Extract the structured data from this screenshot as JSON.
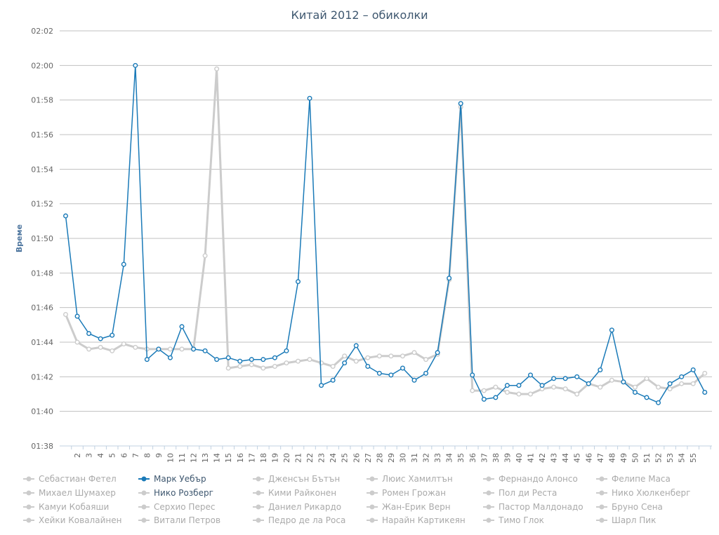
{
  "chart_data": {
    "type": "line",
    "title": "Китай 2012 – обиколки",
    "xlabel": "",
    "ylabel": "Време",
    "ylim": [
      "01:38",
      "02:02"
    ],
    "y_ticks": [
      "01:38",
      "01:40",
      "01:42",
      "01:44",
      "01:46",
      "01:48",
      "01:50",
      "01:52",
      "01:54",
      "01:56",
      "01:58",
      "02:00",
      "02:02"
    ],
    "x_ticks": [
      "2",
      "3",
      "4",
      "5",
      "6",
      "7",
      "8",
      "9",
      "10",
      "11",
      "12",
      "13",
      "14",
      "15",
      "16",
      "17",
      "18",
      "19",
      "20",
      "21",
      "22",
      "23",
      "24",
      "25",
      "26",
      "27",
      "28",
      "29",
      "30",
      "31",
      "32",
      "33",
      "34",
      "35",
      "36",
      "37",
      "38",
      "39",
      "40",
      "41",
      "42",
      "43",
      "44",
      "45",
      "46",
      "47",
      "48",
      "49",
      "50",
      "51",
      "52",
      "53",
      "54",
      "55"
    ],
    "grid": true,
    "legend_position": "bottom",
    "series": [
      {
        "name": "Марк Уебър",
        "color": "#1a7ab8",
        "highlight": true,
        "x": [
          1,
          2,
          3,
          4,
          5,
          6,
          7,
          8,
          9,
          10,
          11,
          12,
          13,
          14,
          15,
          16,
          17,
          18,
          19,
          20,
          21,
          22,
          23,
          24,
          25,
          26,
          27,
          28,
          29,
          30,
          31,
          32,
          33,
          34,
          35,
          36,
          37,
          38,
          39,
          40,
          41,
          42,
          43,
          44,
          45,
          46,
          47,
          48,
          49,
          50,
          51,
          52,
          53,
          54,
          55,
          56
        ],
        "values": [
          "01:51.3",
          "01:45.5",
          "01:44.5",
          "01:44.2",
          "01:44.4",
          "01:48.5",
          "02:00.0",
          "01:43.0",
          "01:43.6",
          "01:43.1",
          "01:44.9",
          "01:43.6",
          "01:43.5",
          "01:43.0",
          "01:43.1",
          "01:42.9",
          "01:43.0",
          "01:43.0",
          "01:43.1",
          "01:43.5",
          "01:47.5",
          "01:58.1",
          "01:41.5",
          "01:41.8",
          "01:42.8",
          "01:43.8",
          "01:42.6",
          "01:42.2",
          "01:42.1",
          "01:42.5",
          "01:41.8",
          "01:42.2",
          "01:43.4",
          "01:47.7",
          "01:57.8",
          "01:42.1",
          "01:40.7",
          "01:40.8",
          "01:41.5",
          "01:41.5",
          "01:42.1",
          "01:41.5",
          "01:41.9",
          "01:41.9",
          "01:42.0",
          "01:41.6",
          "01:42.4",
          "01:44.7",
          "01:41.7",
          "01:41.1",
          "01:40.8",
          "01:40.5",
          "01:41.6",
          "01:42.0",
          "01:42.4",
          "01:41.1"
        ]
      },
      {
        "name": "Нико Розберг",
        "color": "#cccccc",
        "highlight": true,
        "x": [
          1,
          2,
          3,
          4,
          5,
          6,
          7,
          8,
          9,
          10,
          11,
          12,
          13,
          14,
          15,
          16,
          17,
          18,
          19,
          20,
          21,
          22,
          23,
          24,
          25,
          26,
          27,
          28,
          29,
          30,
          31,
          32,
          33,
          34,
          35,
          36,
          37,
          38,
          39,
          40,
          41,
          42,
          43,
          44,
          45,
          46,
          47,
          48,
          49,
          50,
          51,
          52,
          53,
          54,
          55,
          56
        ],
        "values": [
          "01:45.6",
          "01:44.0",
          "01:43.6",
          "01:43.7",
          "01:43.5",
          "01:43.9",
          "01:43.7",
          "01:43.6",
          "01:43.6",
          "01:43.6",
          "01:43.6",
          "01:43.6",
          "01:49.0",
          "01:59.8",
          "01:42.5",
          "01:42.6",
          "01:42.7",
          "01:42.5",
          "01:42.6",
          "01:42.8",
          "01:42.9",
          "01:43.0",
          "01:42.8",
          "01:42.6",
          "01:43.2",
          "01:42.9",
          "01:43.1",
          "01:43.2",
          "01:43.2",
          "01:43.2",
          "01:43.4",
          "01:43.0",
          "01:43.3",
          "01:47.6",
          "01:57.6",
          "01:41.2",
          "01:41.2",
          "01:41.4",
          "01:41.1",
          "01:41.0",
          "01:41.0",
          "01:41.3",
          "01:41.4",
          "01:41.3",
          "01:41.0",
          "01:41.6",
          "01:41.4",
          "01:41.8",
          "01:41.7",
          "01:41.4",
          "01:41.9",
          "01:41.4",
          "01:41.3",
          "01:41.6",
          "01:41.6",
          "01:42.2"
        ]
      }
    ]
  },
  "legend": {
    "items": [
      {
        "name": "Себастиан Фетел",
        "active": false
      },
      {
        "name": "Марк Уебър",
        "active": true,
        "color": "#1a7ab8"
      },
      {
        "name": "Дженсън Бътън",
        "active": false
      },
      {
        "name": "Люис Хамилтън",
        "active": false
      },
      {
        "name": "Фернандо Алонсо",
        "active": false
      },
      {
        "name": "Фелипе Маса",
        "active": false
      },
      {
        "name": "Михаел Шумахер",
        "active": false
      },
      {
        "name": "Нико Розберг",
        "active": true,
        "color": "#cccccc"
      },
      {
        "name": "Кими Райконен",
        "active": false
      },
      {
        "name": "Ромен Грожан",
        "active": false
      },
      {
        "name": "Пол ди Реста",
        "active": false
      },
      {
        "name": "Нико Хюлкенберг",
        "active": false
      },
      {
        "name": "Камуи Кобаяши",
        "active": false
      },
      {
        "name": "Серхио Перес",
        "active": false
      },
      {
        "name": "Даниел Рикардо",
        "active": false
      },
      {
        "name": "Жан-Ерик Верн",
        "active": false
      },
      {
        "name": "Пастор Малдонадо",
        "active": false
      },
      {
        "name": "Бруно Сена",
        "active": false
      },
      {
        "name": "Хейки Ковалайнен",
        "active": false
      },
      {
        "name": "Витали Петров",
        "active": false
      },
      {
        "name": "Педро де ла Роса",
        "active": false
      },
      {
        "name": "Нарайн Картикеян",
        "active": false
      },
      {
        "name": "Тимо Глок",
        "active": false
      },
      {
        "name": "Шарл Пик",
        "active": false
      }
    ]
  }
}
